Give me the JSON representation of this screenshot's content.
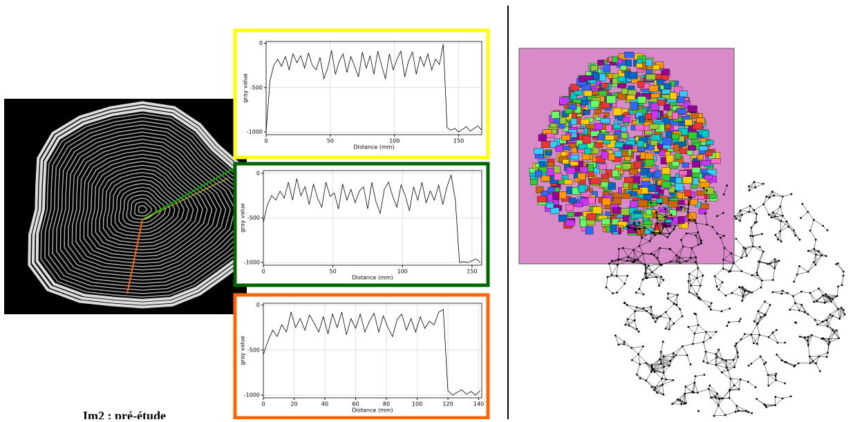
{
  "chart_data": [
    {
      "type": "line",
      "xlabel": "Distance (mm)",
      "ylabel": "gray value",
      "color": "#000000",
      "frame_color": "#ffff00",
      "grid": true,
      "xlim": [
        0,
        168
      ],
      "xticks": [
        0,
        50,
        100,
        150
      ],
      "ylim": [
        -1030,
        20
      ],
      "yticks": [
        -1000,
        -500,
        0
      ],
      "x": [
        0,
        3,
        6,
        9,
        12,
        15,
        18,
        21,
        24,
        27,
        30,
        33,
        36,
        39,
        42,
        45,
        48,
        51,
        54,
        57,
        60,
        63,
        66,
        69,
        72,
        75,
        78,
        81,
        84,
        87,
        90,
        93,
        96,
        99,
        102,
        105,
        108,
        111,
        114,
        117,
        120,
        123,
        126,
        129,
        132,
        135,
        138,
        141,
        144,
        147,
        150,
        153,
        156,
        159,
        162,
        165,
        168
      ],
      "values": [
        -1000,
        -420,
        -250,
        -180,
        -260,
        -150,
        -300,
        -120,
        -220,
        -140,
        -280,
        -110,
        -250,
        -300,
        -160,
        -400,
        -280,
        -80,
        -350,
        -200,
        -120,
        -330,
        -150,
        -260,
        -380,
        -100,
        -280,
        -140,
        -350,
        -90,
        -250,
        -400,
        -120,
        -300,
        -180,
        -90,
        -380,
        -200,
        -100,
        -350,
        -150,
        -260,
        -120,
        -300,
        -180,
        -240,
        -10,
        -950,
        -980,
        -960,
        -1000,
        -970,
        -940,
        -990,
        -960,
        -930,
        -980
      ]
    },
    {
      "type": "line",
      "xlabel": "Distance (mm)",
      "ylabel": "gray value",
      "color": "#000000",
      "frame_color": "#006400",
      "grid": true,
      "xlim": [
        0,
        157
      ],
      "xticks": [
        0,
        50,
        100,
        150
      ],
      "ylim": [
        -1030,
        30
      ],
      "yticks": [
        -1000,
        -500,
        0
      ],
      "x": [
        0,
        3,
        6,
        9,
        12,
        15,
        18,
        21,
        24,
        27,
        30,
        33,
        36,
        39,
        42,
        45,
        48,
        51,
        54,
        57,
        60,
        63,
        66,
        69,
        72,
        75,
        78,
        81,
        84,
        87,
        90,
        93,
        96,
        99,
        102,
        105,
        108,
        111,
        114,
        117,
        120,
        123,
        126,
        129,
        132,
        135,
        138,
        141,
        144,
        147,
        150,
        153,
        156
      ],
      "values": [
        -550,
        -350,
        -250,
        -300,
        -200,
        -280,
        -100,
        -300,
        -60,
        -250,
        -150,
        -350,
        -120,
        -280,
        -380,
        -100,
        -260,
        -220,
        -400,
        -120,
        -300,
        -180,
        -330,
        -200,
        -150,
        -400,
        -100,
        -320,
        -450,
        -180,
        -100,
        -260,
        -380,
        -130,
        -250,
        -420,
        -150,
        -300,
        -100,
        -330,
        -200,
        -300,
        -130,
        -350,
        -150,
        -20,
        -300,
        -1000,
        -990,
        -1000,
        -980,
        -960,
        -1000
      ]
    },
    {
      "type": "line",
      "xlabel": "Distance (mm)",
      "ylabel": "gray value",
      "color": "#000000",
      "frame_color": "#ff6600",
      "grid": true,
      "xlim": [
        0,
        142
      ],
      "xticks": [
        0,
        20,
        40,
        60,
        80,
        100,
        120,
        140
      ],
      "ylim": [
        -1030,
        20
      ],
      "yticks": [
        -1000,
        -500,
        0
      ],
      "x": [
        0,
        3,
        6,
        9,
        12,
        15,
        18,
        21,
        24,
        27,
        30,
        33,
        36,
        39,
        42,
        45,
        48,
        51,
        54,
        57,
        60,
        63,
        66,
        69,
        72,
        75,
        78,
        81,
        84,
        87,
        90,
        93,
        96,
        99,
        102,
        105,
        108,
        111,
        114,
        117,
        120,
        123,
        126,
        129,
        132,
        135,
        138,
        141
      ],
      "values": [
        -550,
        -400,
        -280,
        -350,
        -220,
        -300,
        -80,
        -250,
        -150,
        -280,
        -110,
        -200,
        -300,
        -130,
        -320,
        -100,
        -250,
        -80,
        -330,
        -150,
        -260,
        -100,
        -300,
        -180,
        -90,
        -300,
        -120,
        -250,
        -350,
        -160,
        -100,
        -280,
        -150,
        -300,
        -130,
        -260,
        -180,
        -220,
        -80,
        -50,
        -950,
        -1000,
        -970,
        -940,
        -990,
        -960,
        -1000,
        -950
      ]
    }
  ],
  "caption": "Im2 : pré-étude"
}
